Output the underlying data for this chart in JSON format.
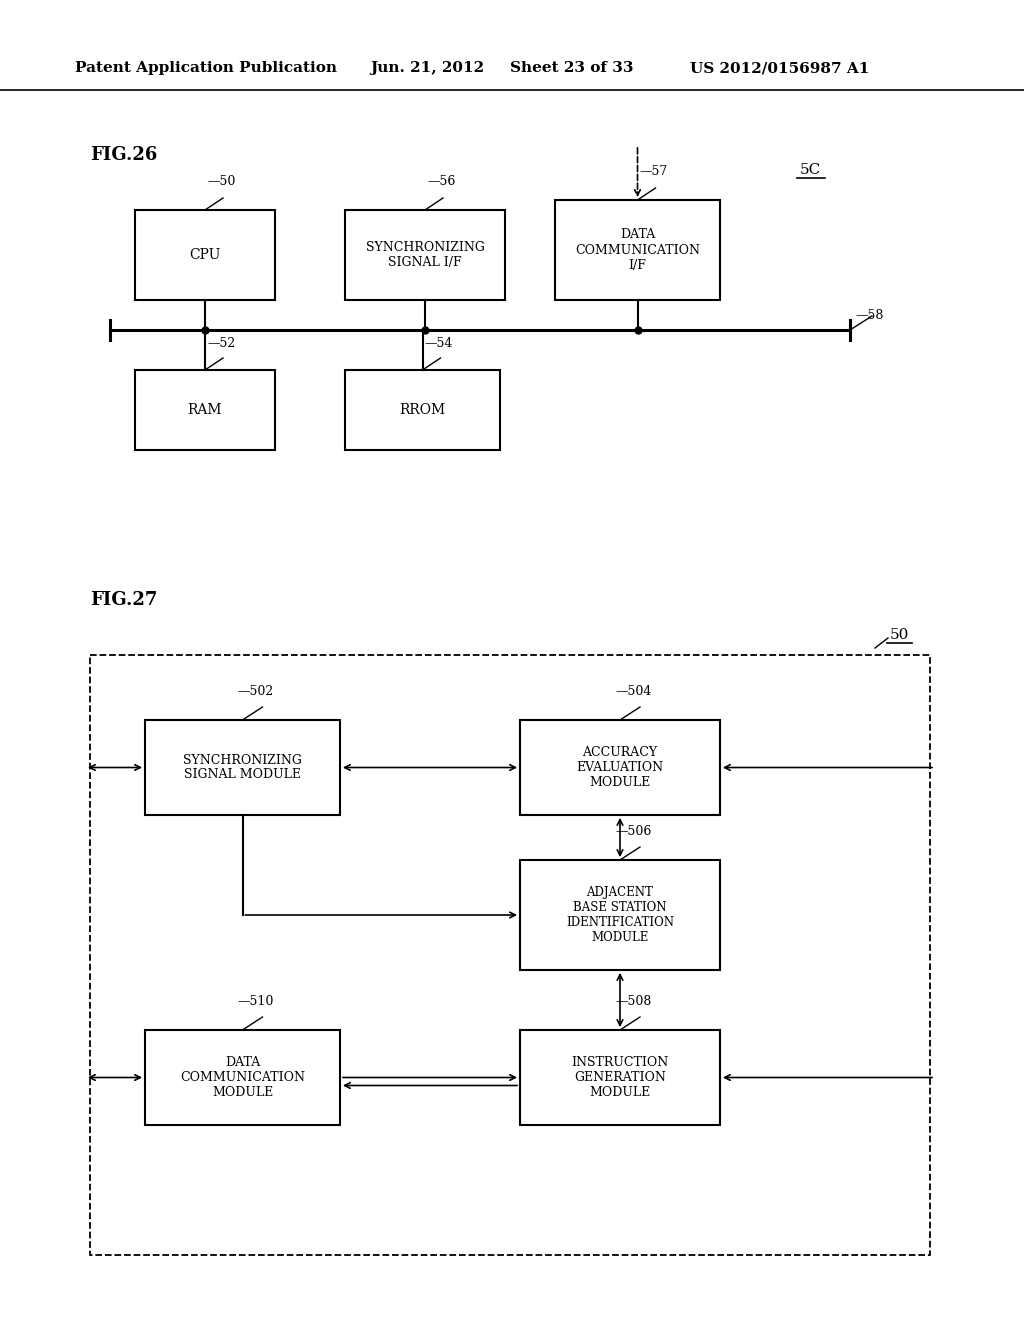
{
  "bg_color": "#ffffff",
  "header_text": "Patent Application Publication",
  "header_date": "Jun. 21, 2012",
  "header_sheet": "Sheet 23 of 33",
  "header_patent": "US 2012/0156987 A1"
}
